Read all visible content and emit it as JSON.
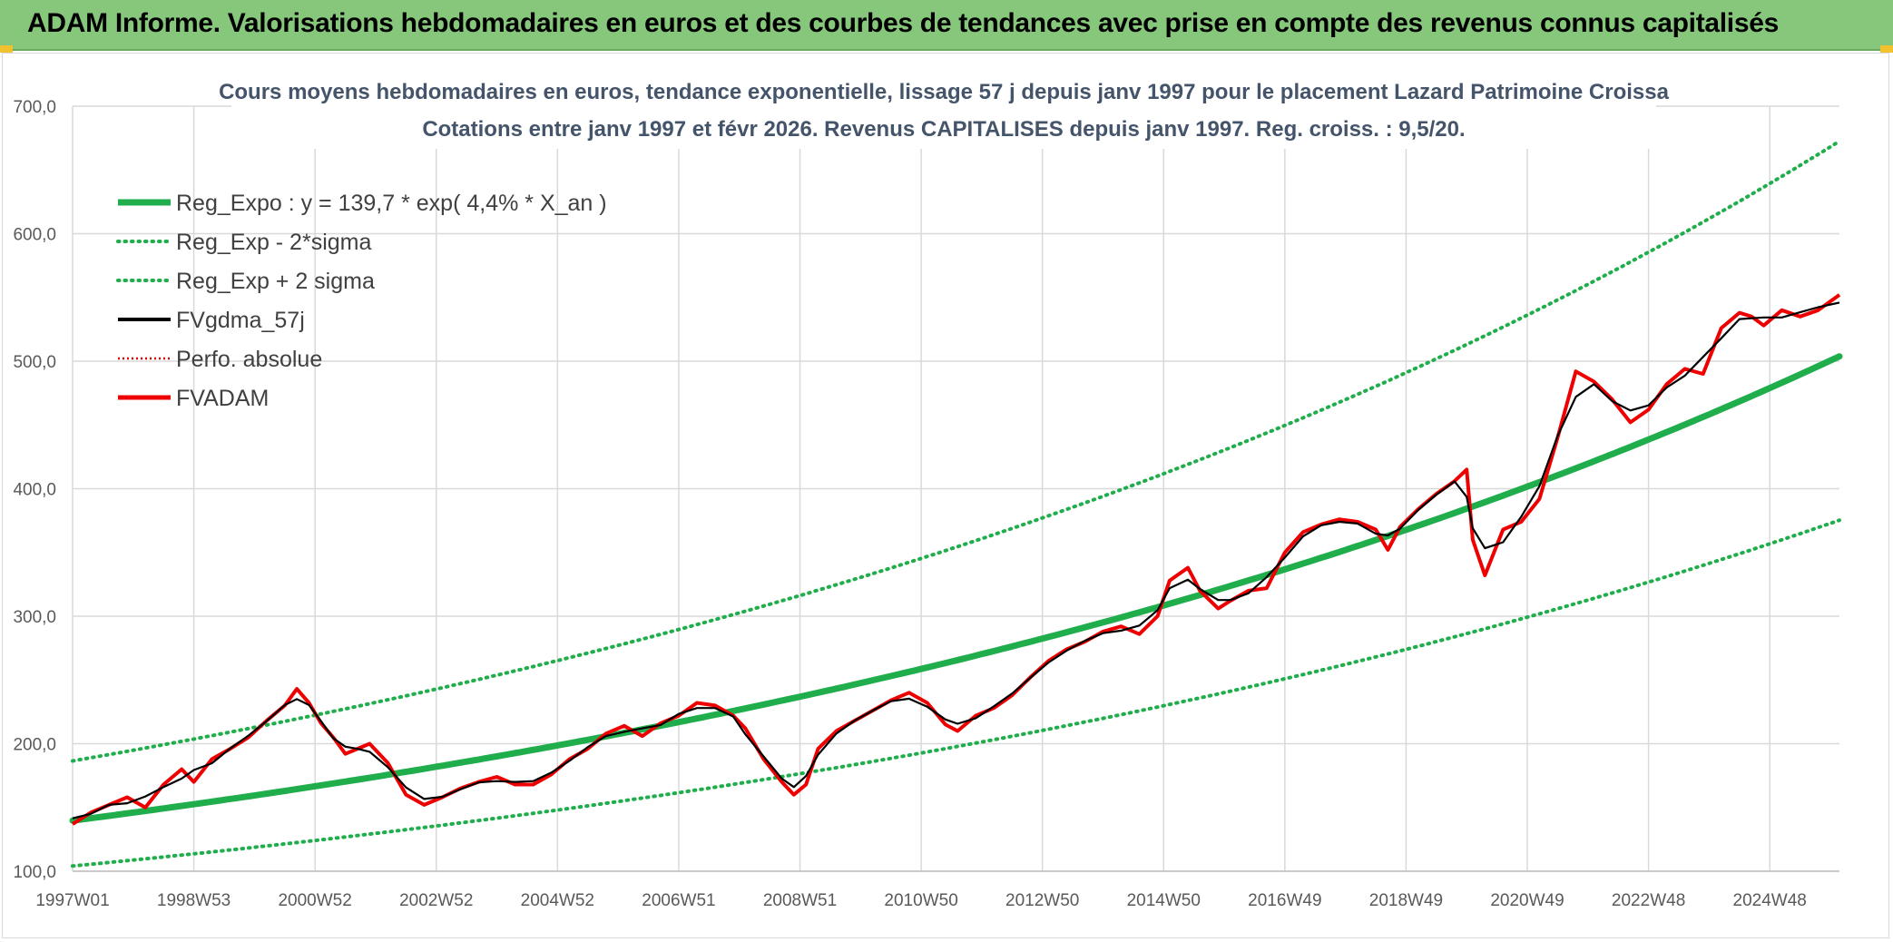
{
  "banner": {
    "title": "ADAM Informe. Valorisations hebdomadaires en euros et des courbes de tendances avec prise en compte des revenus connus capitalisés",
    "background_color": "#86c77b"
  },
  "chart_data": {
    "type": "line",
    "title_line1": "Cours moyens hebdomadaires en euros, tendance exponentielle, lissage 57 j depuis janv 1997 pour le placement Lazard Patrimoine Croissa",
    "title_line2": "Cotations entre janv 1997 et févr 2026. Revenus CAPITALISES depuis janv 1997. Reg. croiss. : 9,5/20.",
    "xlabel": "",
    "ylabel": "",
    "ylim": [
      100,
      700
    ],
    "xlim": [
      1997.0,
      2026.15
    ],
    "grid": true,
    "legend_position": "top-left",
    "y_ticks": [
      "100,0",
      "200,0",
      "300,0",
      "400,0",
      "500,0",
      "600,0",
      "700,0"
    ],
    "y_tick_values": [
      100,
      200,
      300,
      400,
      500,
      600,
      700
    ],
    "x_ticks": [
      {
        "label": "1997W01",
        "x": 1997.0
      },
      {
        "label": "1998W53",
        "x": 1999.0
      },
      {
        "label": "2000W52",
        "x": 2001.0
      },
      {
        "label": "2002W52",
        "x": 2003.0
      },
      {
        "label": "2004W52",
        "x": 2005.0
      },
      {
        "label": "2006W51",
        "x": 2007.0
      },
      {
        "label": "2008W51",
        "x": 2009.0
      },
      {
        "label": "2010W50",
        "x": 2011.0
      },
      {
        "label": "2012W50",
        "x": 2013.0
      },
      {
        "label": "2014W50",
        "x": 2015.0
      },
      {
        "label": "2016W49",
        "x": 2017.0
      },
      {
        "label": "2018W49",
        "x": 2019.0
      },
      {
        "label": "2020W49",
        "x": 2021.0
      },
      {
        "label": "2022W48",
        "x": 2023.0
      },
      {
        "label": "2024W48",
        "x": 2025.0
      }
    ],
    "regression": {
      "a": 139.7,
      "rate": 0.044,
      "x0": 1997.0,
      "band_factor_low": 0.745,
      "band_factor_high": 1.335
    },
    "series": [
      {
        "name": "Reg_Expo : y = 139,7 * exp( 4,4% *  X_an )",
        "color": "#1fae4b",
        "style": "thick"
      },
      {
        "name": "Reg_Exp - 2*sigma",
        "color": "#1fae4b",
        "style": "dotted"
      },
      {
        "name": "Reg_Exp + 2 sigma",
        "color": "#1fae4b",
        "style": "dotted"
      },
      {
        "name": "FVgdma_57j",
        "color": "#000000",
        "style": "solid"
      },
      {
        "name": "Perfo. absolue",
        "color": "#e00000",
        "style": "dotted"
      },
      {
        "name": "FVADAM",
        "color": "#ee0000",
        "style": "solid",
        "x": [
          1997.0,
          1997.3,
          1997.6,
          1997.9,
          1998.2,
          1998.5,
          1998.8,
          1999.0,
          1999.3,
          1999.6,
          1999.9,
          2000.2,
          2000.5,
          2000.7,
          2000.9,
          2001.1,
          2001.3,
          2001.5,
          2001.7,
          2001.9,
          2002.2,
          2002.5,
          2002.8,
          2003.1,
          2003.4,
          2003.7,
          2004.0,
          2004.3,
          2004.6,
          2004.9,
          2005.2,
          2005.5,
          2005.8,
          2006.1,
          2006.4,
          2006.7,
          2007.0,
          2007.3,
          2007.6,
          2007.9,
          2008.1,
          2008.4,
          2008.7,
          2008.9,
          2009.1,
          2009.3,
          2009.6,
          2009.9,
          2010.2,
          2010.5,
          2010.8,
          2011.1,
          2011.4,
          2011.6,
          2011.9,
          2012.2,
          2012.5,
          2012.8,
          2013.1,
          2013.4,
          2013.7,
          2014.0,
          2014.3,
          2014.6,
          2014.9,
          2015.1,
          2015.4,
          2015.6,
          2015.9,
          2016.1,
          2016.4,
          2016.7,
          2017.0,
          2017.3,
          2017.6,
          2017.9,
          2018.2,
          2018.5,
          2018.7,
          2018.9,
          2019.2,
          2019.5,
          2019.8,
          2020.0,
          2020.1,
          2020.3,
          2020.6,
          2020.9,
          2021.2,
          2021.5,
          2021.8,
          2022.1,
          2022.4,
          2022.7,
          2023.0,
          2023.3,
          2023.6,
          2023.9,
          2024.2,
          2024.5,
          2024.7,
          2024.9,
          2025.2,
          2025.5,
          2025.8,
          2026.15
        ],
        "values": [
          137,
          146,
          152,
          158,
          150,
          168,
          180,
          170,
          188,
          196,
          205,
          218,
          230,
          243,
          232,
          216,
          205,
          192,
          196,
          200,
          185,
          160,
          152,
          158,
          165,
          170,
          174,
          168,
          168,
          176,
          188,
          196,
          208,
          214,
          206,
          216,
          222,
          232,
          230,
          222,
          212,
          188,
          170,
          160,
          168,
          196,
          210,
          218,
          226,
          234,
          240,
          232,
          215,
          210,
          222,
          228,
          238,
          252,
          265,
          274,
          280,
          288,
          292,
          286,
          300,
          328,
          338,
          320,
          306,
          312,
          320,
          322,
          350,
          366,
          372,
          376,
          374,
          368,
          352,
          370,
          384,
          396,
          406,
          415,
          360,
          332,
          368,
          374,
          392,
          440,
          492,
          484,
          470,
          452,
          462,
          482,
          494,
          490,
          526,
          538,
          535,
          528,
          540,
          535,
          540,
          552
        ]
      }
    ],
    "smooth_window": 3
  }
}
